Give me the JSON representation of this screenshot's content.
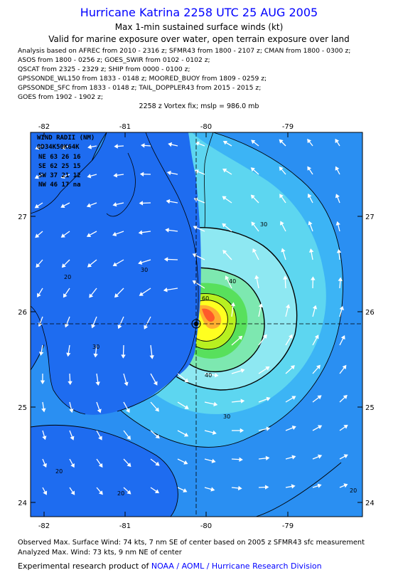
{
  "header": {
    "title": "Hurricane Katrina 2258 UTC 25 AUG 2005",
    "subtitle": "Max 1-min sustained surface winds (kt)",
    "validity": "Valid for marine exposure over water, open terrain exposure over land"
  },
  "analysis_sources": [
    "Analysis based on  AFREC from 2010 - 2316 z;  SFMR43 from 1800 - 2107 z;  CMAN from 1800 - 0300 z;",
    "ASOS from 1800 - 0256 z;  GOES_SWIR from 0102 - 0102 z;",
    "QSCAT from 2325 - 2329 z;  SHIP from 0000 - 0100 z;",
    "GPSSONDE_WL150 from 1833 - 0148 z;  MOORED_BUOY from 1809 - 0259 z;",
    "GPSSONDE_SFC from 1833 - 0148 z;  TAIL_DOPPLER43 from 2015 - 2015 z;",
    "GOES from 1902 - 1902 z;"
  ],
  "vortex_fix": "2258 z Vortex fix; mslp = 986.0 mb",
  "map": {
    "lon_ticks": [
      "-82",
      "-81",
      "-80",
      "-79"
    ],
    "lat_ticks": [
      "27",
      "26",
      "25",
      "24"
    ],
    "center": {
      "lon": -80.05,
      "lat": 25.85
    },
    "contour_labels": [
      "20",
      "30",
      "40",
      "60",
      "30",
      "40",
      "30",
      "20",
      "20",
      "20",
      "30"
    ],
    "wind_radii": {
      "header1": "WIND RADII (NM)",
      "header2": "QD34K50K64K",
      "rows": [
        "NE 63 26 16",
        "SE 62 25 15",
        "SW 37 21 12",
        "NW 46 17 na"
      ]
    },
    "colors": {
      "ocean_base": "#1e6cf0",
      "low": "#2a8ff2",
      "mid1": "#3cb4f5",
      "mid2": "#5dd6f0",
      "mid3": "#8ee8f2",
      "high1": "#7de8b0",
      "high2": "#58e05c",
      "high3": "#b8f020",
      "peak1": "#ffff20",
      "peak2": "#ffb030",
      "peak3": "#ff5a2a"
    }
  },
  "footer": {
    "observed": "Observed Max. Surface Wind: 74 kts, 7 nm SE of center based on 2005 z SFMR43 sfc measurement",
    "analyzed": "Analyzed Max. Wind: 73 kts, 9 nm NE of center",
    "credit_prefix": "Experimental research product of",
    "credit_org": "NOAA / AOML / Hurricane Research Division"
  }
}
